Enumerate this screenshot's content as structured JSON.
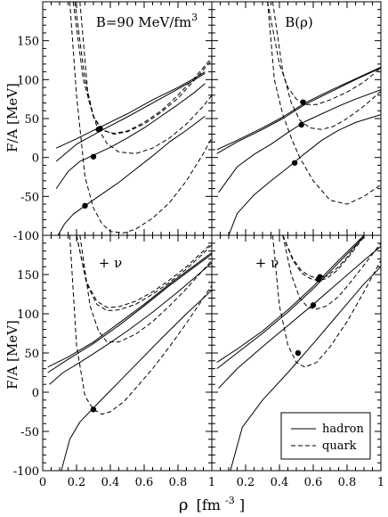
{
  "figure": {
    "ylabel_top": "F/A [MeV]",
    "ylabel_bottom": "F/A [MeV]",
    "xlabel_main": "ρ",
    "xlabel_unit": "[fm",
    "xlabel_exp": "-3",
    "xlabel_close": "]",
    "legend": {
      "hadron": "hadron",
      "quark": "quark"
    },
    "colors": {
      "axis": "#000000",
      "background": "#ffffff"
    }
  },
  "chart_data": [
    {
      "type": "line",
      "panel": "top-left",
      "annotation": "B=90 MeV/fm",
      "annotation_sup": "3",
      "xlim": [
        0,
        1
      ],
      "ylim": [
        -100,
        200
      ],
      "xticks": [],
      "yticks": [
        -100,
        -50,
        0,
        50,
        100,
        150
      ],
      "ytick_labels": [
        "-100",
        "-50",
        "0",
        "50",
        "100",
        "150"
      ],
      "series": [
        {
          "kind": "hadron",
          "x": [
            0.08,
            0.2,
            0.35,
            0.5,
            0.65,
            0.8,
            0.9,
            0.96
          ],
          "y": [
            12,
            24,
            40,
            56,
            74,
            90,
            102,
            110
          ]
        },
        {
          "kind": "hadron",
          "x": [
            0.08,
            0.2,
            0.35,
            0.5,
            0.65,
            0.8,
            0.9,
            0.96
          ],
          "y": [
            -5,
            17,
            35,
            52,
            70,
            88,
            100,
            108
          ]
        },
        {
          "kind": "hadron",
          "x": [
            0.08,
            0.15,
            0.22,
            0.3,
            0.4,
            0.5,
            0.6,
            0.7,
            0.8,
            0.9,
            0.96
          ],
          "y": [
            -40,
            -18,
            -5,
            3,
            13,
            25,
            38,
            53,
            68,
            84,
            95
          ]
        },
        {
          "kind": "hadron",
          "x": [
            0.09,
            0.13,
            0.18,
            0.25,
            0.35,
            0.45,
            0.55,
            0.65,
            0.75,
            0.85,
            0.96
          ],
          "y": [
            -100,
            -85,
            -73,
            -62,
            -47,
            -32,
            -15,
            2,
            20,
            35,
            53
          ]
        },
        {
          "kind": "quark",
          "x": [
            0.18,
            0.24,
            0.3,
            0.35,
            0.42,
            0.5,
            0.6,
            0.7,
            0.8,
            0.9,
            1.0
          ],
          "y": [
            200,
            100,
            52,
            35,
            31,
            34,
            45,
            60,
            80,
            103,
            128
          ]
        },
        {
          "kind": "quark",
          "x": [
            0.19,
            0.25,
            0.3,
            0.35,
            0.42,
            0.5,
            0.6,
            0.7,
            0.8,
            0.9,
            1.0
          ],
          "y": [
            200,
            100,
            53,
            36,
            30,
            33,
            43,
            58,
            76,
            100,
            125
          ]
        },
        {
          "kind": "quark",
          "x": [
            0.22,
            0.27,
            0.32,
            0.38,
            0.45,
            0.55,
            0.65,
            0.75,
            0.85,
            0.95,
            1.0
          ],
          "y": [
            200,
            75,
            40,
            18,
            7,
            5,
            12,
            25,
            43,
            66,
            80
          ]
        },
        {
          "kind": "quark",
          "x": [
            0.16,
            0.2,
            0.25,
            0.3,
            0.35,
            0.4,
            0.48,
            0.55,
            0.65,
            0.75,
            0.85,
            0.95,
            1.0
          ],
          "y": [
            200,
            80,
            -25,
            -65,
            -85,
            -95,
            -97,
            -92,
            -78,
            -58,
            -30,
            5,
            25
          ]
        }
      ],
      "points": [
        {
          "x": 0.33,
          "y": 36
        },
        {
          "x": 0.34,
          "y": 37
        },
        {
          "x": 0.3,
          "y": 1
        },
        {
          "x": 0.25,
          "y": -62
        }
      ]
    },
    {
      "type": "line",
      "panel": "top-right",
      "annotation": "B(ρ)",
      "annotation_sup": "",
      "xlim": [
        0,
        1
      ],
      "ylim": [
        -100,
        200
      ],
      "xticks": [],
      "yticks": [],
      "series": [
        {
          "kind": "hadron",
          "x": [
            0.03,
            0.15,
            0.3,
            0.42,
            0.55,
            0.7,
            0.85,
            1.0
          ],
          "y": [
            10,
            22,
            38,
            52,
            70,
            86,
            101,
            116
          ]
        },
        {
          "kind": "hadron",
          "x": [
            0.03,
            0.15,
            0.3,
            0.42,
            0.55,
            0.7,
            0.85,
            1.0
          ],
          "y": [
            5,
            20,
            36,
            50,
            68,
            84,
            100,
            115
          ]
        },
        {
          "kind": "hadron",
          "x": [
            0.04,
            0.15,
            0.25,
            0.35,
            0.45,
            0.55,
            0.65,
            0.75,
            0.85,
            1.0
          ],
          "y": [
            -45,
            -12,
            4,
            17,
            32,
            46,
            56,
            66,
            75,
            87
          ]
        },
        {
          "kind": "hadron",
          "x": [
            0.1,
            0.15,
            0.25,
            0.35,
            0.45,
            0.55,
            0.65,
            0.75,
            0.85,
            1.0
          ],
          "y": [
            -100,
            -72,
            -48,
            -30,
            -13,
            5,
            22,
            35,
            45,
            55
          ]
        },
        {
          "kind": "quark",
          "x": [
            0.33,
            0.4,
            0.45,
            0.5,
            0.55,
            0.62,
            0.7,
            0.8,
            0.9,
            1.0
          ],
          "y": [
            200,
            120,
            90,
            75,
            68,
            68,
            74,
            84,
            97,
            115
          ]
        },
        {
          "kind": "quark",
          "x": [
            0.36,
            0.42,
            0.47,
            0.52,
            0.58,
            0.65,
            0.72,
            0.8,
            0.9,
            1.0
          ],
          "y": [
            200,
            110,
            70,
            48,
            38,
            36,
            40,
            50,
            66,
            85
          ]
        },
        {
          "kind": "quark",
          "x": [
            0.33,
            0.37,
            0.42,
            0.47,
            0.52,
            0.6,
            0.7,
            0.8,
            0.9,
            1.0
          ],
          "y": [
            200,
            100,
            55,
            25,
            0,
            -30,
            -55,
            -60,
            -50,
            -35
          ]
        }
      ],
      "points": [
        {
          "x": 0.54,
          "y": 71
        },
        {
          "x": 0.53,
          "y": 42
        },
        {
          "x": 0.49,
          "y": -7
        }
      ]
    },
    {
      "type": "line",
      "panel": "bottom-left",
      "annotation": "+ ν",
      "annotation_sup": "",
      "xlim": [
        0,
        1
      ],
      "ylim": [
        -100,
        200
      ],
      "xticks": [
        0,
        0.2,
        0.4,
        0.6,
        0.8,
        1
      ],
      "xtick_labels": [
        "0",
        "0.2",
        "0.4",
        "0.6",
        "0.8",
        "1"
      ],
      "yticks": [
        -100,
        -50,
        0,
        50,
        100,
        150
      ],
      "ytick_labels": [
        "-100",
        "-50",
        "0",
        "50",
        "100",
        "150"
      ],
      "series": [
        {
          "kind": "hadron",
          "x": [
            0.03,
            0.15,
            0.3,
            0.45,
            0.6,
            0.75,
            0.9,
            1.0
          ],
          "y": [
            32,
            45,
            64,
            88,
            112,
            138,
            162,
            178
          ]
        },
        {
          "kind": "hadron",
          "x": [
            0.03,
            0.15,
            0.3,
            0.45,
            0.6,
            0.75,
            0.9,
            1.0
          ],
          "y": [
            25,
            42,
            62,
            85,
            110,
            136,
            160,
            176
          ]
        },
        {
          "kind": "hadron",
          "x": [
            0.04,
            0.12,
            0.22,
            0.35,
            0.5,
            0.65,
            0.8,
            0.92,
            1.0
          ],
          "y": [
            10,
            25,
            38,
            56,
            78,
            102,
            128,
            150,
            165
          ]
        },
        {
          "kind": "hadron",
          "x": [
            0.11,
            0.16,
            0.22,
            0.3,
            0.4,
            0.55,
            0.7,
            0.85,
            1.0
          ],
          "y": [
            -100,
            -60,
            -38,
            -20,
            2,
            35,
            68,
            100,
            130
          ]
        },
        {
          "kind": "quark",
          "x": [
            0.2,
            0.26,
            0.32,
            0.38,
            0.45,
            0.55,
            0.65,
            0.75,
            0.85,
            0.95,
            1.0
          ],
          "y": [
            200,
            140,
            116,
            108,
            109,
            116,
            128,
            143,
            160,
            180,
            190
          ]
        },
        {
          "kind": "quark",
          "x": [
            0.2,
            0.26,
            0.32,
            0.38,
            0.45,
            0.55,
            0.65,
            0.75,
            0.85,
            0.95,
            1.0
          ],
          "y": [
            200,
            138,
            112,
            104,
            105,
            112,
            125,
            140,
            157,
            177,
            188
          ]
        },
        {
          "kind": "quark",
          "x": [
            0.22,
            0.28,
            0.33,
            0.38,
            0.45,
            0.55,
            0.65,
            0.75,
            0.85,
            0.95,
            1.0
          ],
          "y": [
            200,
            110,
            78,
            64,
            64,
            74,
            90,
            110,
            132,
            156,
            168
          ]
        },
        {
          "kind": "quark",
          "x": [
            0.16,
            0.2,
            0.25,
            0.3,
            0.35,
            0.4,
            0.48,
            0.55,
            0.65,
            0.75,
            0.85,
            0.95,
            1.0
          ],
          "y": [
            200,
            60,
            -5,
            -22,
            -28,
            -25,
            -12,
            5,
            30,
            58,
            88,
            120,
            136
          ]
        }
      ],
      "points": [
        {
          "x": 0.3,
          "y": -22
        }
      ]
    },
    {
      "type": "line",
      "panel": "bottom-right",
      "annotation": "+ ν",
      "annotation_sup": "",
      "xlim": [
        0,
        1
      ],
      "ylim": [
        -100,
        200
      ],
      "xticks": [
        0.2,
        0.4,
        0.6,
        0.8,
        1
      ],
      "xtick_labels": [
        "0.2",
        "0.4",
        "0.6",
        "0.8",
        "1"
      ],
      "yticks": [],
      "series": [
        {
          "kind": "hadron",
          "x": [
            0.03,
            0.15,
            0.3,
            0.45,
            0.6,
            0.75,
            0.9
          ],
          "y": [
            38,
            55,
            78,
            105,
            135,
            168,
            200
          ]
        },
        {
          "kind": "hadron",
          "x": [
            0.03,
            0.15,
            0.3,
            0.45,
            0.6,
            0.75,
            0.9
          ],
          "y": [
            30,
            50,
            75,
            102,
            132,
            165,
            198
          ]
        },
        {
          "kind": "hadron",
          "x": [
            0.04,
            0.15,
            0.3,
            0.45,
            0.6,
            0.75,
            0.9,
            1.0
          ],
          "y": [
            5,
            30,
            58,
            85,
            112,
            140,
            168,
            186
          ]
        },
        {
          "kind": "hadron",
          "x": [
            0.11,
            0.18,
            0.3,
            0.45,
            0.6,
            0.75,
            0.9,
            1.0
          ],
          "y": [
            -100,
            -45,
            -10,
            25,
            62,
            100,
            138,
            160
          ]
        },
        {
          "kind": "quark",
          "x": [
            0.42,
            0.48,
            0.53,
            0.58,
            0.63,
            0.68,
            0.74,
            0.8,
            0.85,
            0.9
          ],
          "y": [
            200,
            170,
            155,
            148,
            145,
            148,
            158,
            172,
            186,
            200
          ]
        },
        {
          "kind": "quark",
          "x": [
            0.42,
            0.48,
            0.53,
            0.58,
            0.63,
            0.68,
            0.74,
            0.8,
            0.85,
            0.9
          ],
          "y": [
            200,
            168,
            152,
            145,
            142,
            145,
            155,
            170,
            184,
            198
          ]
        },
        {
          "kind": "quark",
          "x": [
            0.42,
            0.47,
            0.52,
            0.57,
            0.62,
            0.68,
            0.75,
            0.82,
            0.9,
            1.0
          ],
          "y": [
            200,
            150,
            120,
            108,
            106,
            110,
            122,
            140,
            162,
            190
          ]
        },
        {
          "kind": "quark",
          "x": [
            0.36,
            0.4,
            0.45,
            0.5,
            0.55,
            0.62,
            0.7,
            0.8,
            0.9,
            1.0
          ],
          "y": [
            200,
            110,
            60,
            38,
            32,
            38,
            58,
            90,
            128,
            168
          ]
        }
      ],
      "points": [
        {
          "x": 0.64,
          "y": 147
        },
        {
          "x": 0.63,
          "y": 144
        },
        {
          "x": 0.6,
          "y": 111
        },
        {
          "x": 0.51,
          "y": 50
        }
      ]
    }
  ]
}
